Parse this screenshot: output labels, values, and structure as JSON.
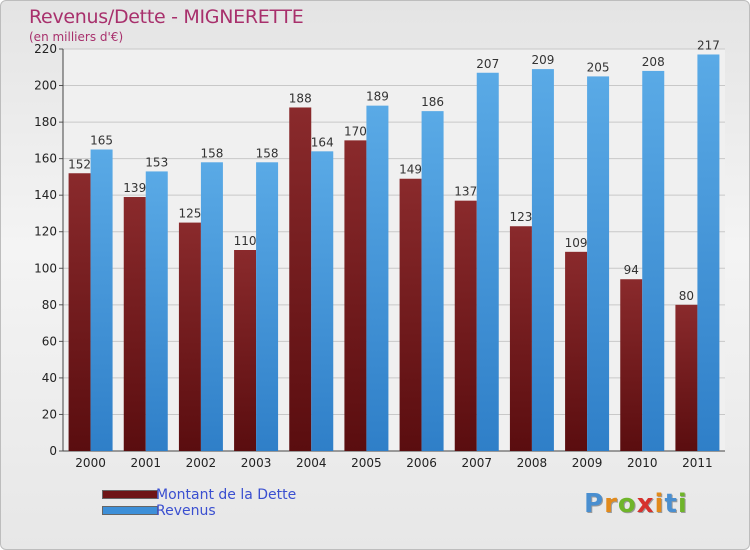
{
  "chart_data": {
    "type": "bar",
    "title": "Revenus/Dette - MIGNERETTE",
    "subtitle": "(en milliers d'€)",
    "categories": [
      "2000",
      "2001",
      "2002",
      "2003",
      "2004",
      "2005",
      "2006",
      "2007",
      "2008",
      "2009",
      "2010",
      "2011"
    ],
    "series": [
      {
        "name": "Montant de la Dette",
        "color": "#6e1517",
        "values": [
          152,
          139,
          125,
          110,
          188,
          170,
          149,
          137,
          123,
          109,
          94,
          80
        ]
      },
      {
        "name": "Revenus",
        "color": "#3d8fd8",
        "values": [
          165,
          153,
          158,
          158,
          164,
          189,
          186,
          207,
          209,
          205,
          208,
          217
        ]
      }
    ],
    "ylim": [
      0,
      220
    ],
    "yticks": [
      0,
      20,
      40,
      60,
      80,
      100,
      120,
      140,
      160,
      180,
      200,
      220
    ],
    "grid": true,
    "legend_position": "bottom-left"
  },
  "brand": {
    "letters": [
      "P",
      "r",
      "o",
      "x",
      "i",
      "t",
      "i"
    ],
    "colors": [
      "#4a8fd0",
      "#e28a1b",
      "#6fb52a",
      "#d6322e",
      "#e28a1b",
      "#4a8fd0",
      "#6fb52a"
    ]
  }
}
